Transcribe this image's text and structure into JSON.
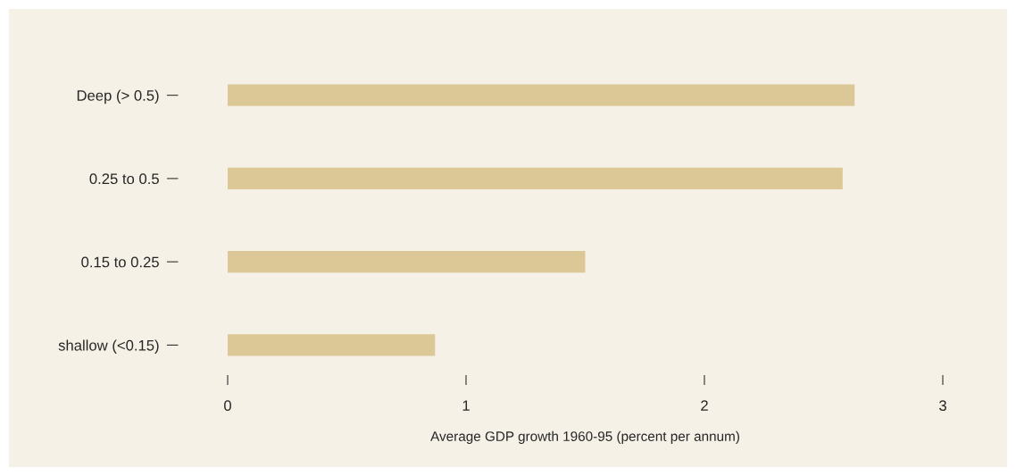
{
  "chart_data": {
    "type": "bar",
    "orientation": "horizontal",
    "categories": [
      "Deep (> 0.5)",
      "0.25 to 0.5",
      "0.15 to 0.25",
      "shallow (<0.15)"
    ],
    "values": [
      2.63,
      2.58,
      1.5,
      0.87
    ],
    "color": "#dcc896",
    "xlabel": "Average GDP growth 1960-95 (percent per annum)",
    "xlim": [
      0,
      3
    ],
    "xticks": [
      0,
      1,
      2,
      3
    ],
    "grid": false,
    "legend": false
  }
}
